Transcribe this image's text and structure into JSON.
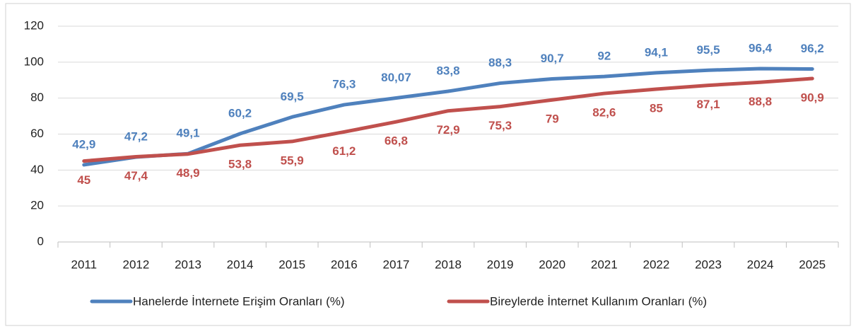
{
  "chart_data": {
    "type": "line",
    "categories": [
      "2011",
      "2012",
      "2013",
      "2014",
      "2015",
      "2016",
      "2017",
      "2018",
      "2019",
      "2020",
      "2021",
      "2022",
      "2023",
      "2024",
      "2025"
    ],
    "series": [
      {
        "name": "Hanelerde İnternete Erişim Oranları (%)",
        "color": "#4f81bd",
        "values": [
          42.9,
          47.2,
          49.1,
          60.2,
          69.5,
          76.3,
          80.07,
          83.8,
          88.3,
          90.7,
          92,
          94.1,
          95.5,
          96.4,
          96.2
        ],
        "value_labels": [
          "42,9",
          "47,2",
          "49,1",
          "60,2",
          "69,5",
          "76,3",
          "80,07",
          "83,8",
          "88,3",
          "90,7",
          "92",
          "94,1",
          "95,5",
          "96,4",
          "96,2"
        ]
      },
      {
        "name": "Bireylerde İnternet Kullanım Oranları (%)",
        "color": "#c0504d",
        "values": [
          45,
          47.4,
          48.9,
          53.8,
          55.9,
          61.2,
          66.8,
          72.9,
          75.3,
          79,
          82.6,
          85,
          87.1,
          88.8,
          90.9
        ],
        "value_labels": [
          "45",
          "47,4",
          "48,9",
          "53,8",
          "55,9",
          "61,2",
          "66,8",
          "72,9",
          "75,3",
          "79",
          "82,6",
          "85",
          "87,1",
          "88,8",
          "90,9"
        ]
      }
    ],
    "ylim": [
      0,
      120
    ],
    "yticks": [
      0,
      20,
      40,
      60,
      80,
      100,
      120
    ],
    "grid": true,
    "legend": "bottom"
  }
}
